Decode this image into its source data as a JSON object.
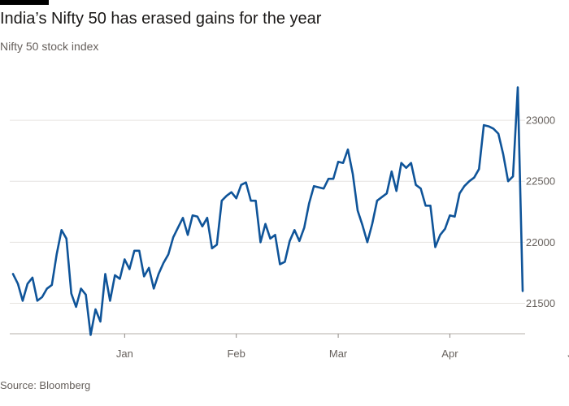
{
  "header": {
    "title": "India’s Nifty 50 has erased gains for the year",
    "subtitle": "Nifty 50 stock index"
  },
  "footer": {
    "source": "Source: Bloomberg"
  },
  "colors": {
    "line": "#0f5499",
    "grid": "#e6e3e0"
  },
  "chart_data": {
    "type": "line",
    "title": "India’s Nifty 50 has erased gains for the year",
    "subtitle": "Nifty 50 stock index",
    "xlabel": "",
    "ylabel": "",
    "ylim": [
      21250,
      23400
    ],
    "yticks": [
      21500,
      22000,
      22500,
      23000
    ],
    "y_axis_side": "right",
    "grid": true,
    "xtick_labels": [
      {
        "label": "Jan",
        "index": 23
      },
      {
        "label": "Feb",
        "index": 46
      },
      {
        "label": "Mar",
        "index": 67
      },
      {
        "label": "Apr",
        "index": 90
      },
      {
        "label": "Jun",
        "index": 116
      }
    ],
    "series": [
      {
        "name": "Nifty 50",
        "values": [
          21740,
          21660,
          21520,
          21660,
          21710,
          21520,
          21550,
          21620,
          21650,
          21900,
          22100,
          22030,
          21580,
          21470,
          21620,
          21570,
          21240,
          21450,
          21350,
          21740,
          21520,
          21730,
          21700,
          21860,
          21780,
          21930,
          21930,
          21720,
          21790,
          21620,
          21740,
          21830,
          21900,
          22040,
          22120,
          22200,
          22060,
          22220,
          22210,
          22130,
          22200,
          21950,
          21980,
          22340,
          22380,
          22410,
          22360,
          22470,
          22490,
          22340,
          22340,
          22000,
          22150,
          22030,
          22060,
          21820,
          21840,
          22010,
          22100,
          22010,
          22120,
          22320,
          22460,
          22450,
          22440,
          22520,
          22520,
          22660,
          22650,
          22760,
          22560,
          22260,
          22140,
          22000,
          22150,
          22340,
          22370,
          22400,
          22580,
          22420,
          22650,
          22610,
          22650,
          22470,
          22440,
          22300,
          22300,
          21960,
          22060,
          22110,
          22220,
          22210,
          22400,
          22460,
          22500,
          22530,
          22600,
          22960,
          22950,
          22930,
          22890,
          22720,
          22500,
          22540,
          23270,
          21600
        ]
      }
    ]
  }
}
